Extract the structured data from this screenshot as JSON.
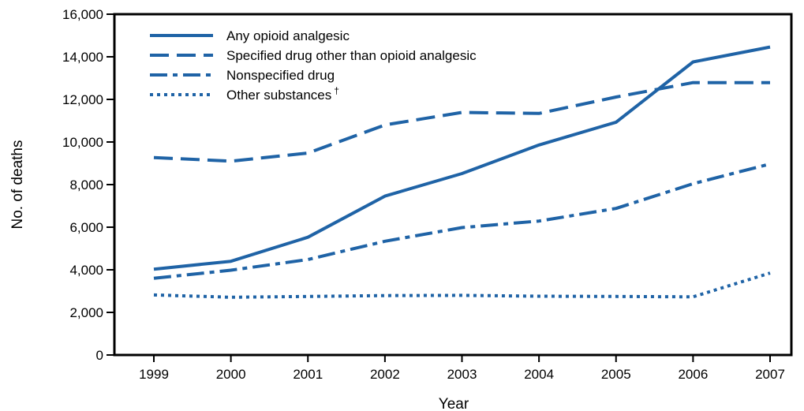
{
  "chart_data": {
    "type": "line",
    "title": "",
    "xlabel": "Year",
    "ylabel": "No. of deaths",
    "x": [
      "1999",
      "2000",
      "2001",
      "2002",
      "2003",
      "2004",
      "2005",
      "2006",
      "2007"
    ],
    "ylim": [
      0,
      16000
    ],
    "yticks": [
      "0",
      "2,000",
      "4,000",
      "6,000",
      "8,000",
      "10,000",
      "12,000",
      "14,000",
      "16,000"
    ],
    "ytick_values": [
      0,
      2000,
      4000,
      6000,
      8000,
      10000,
      12000,
      14000,
      16000
    ],
    "grid": false,
    "legend_position": "top-left",
    "series": [
      {
        "name": "Any opioid analgesic",
        "style": "solid",
        "values": [
          4030,
          4400,
          5530,
          7460,
          8520,
          9860,
          10930,
          13760,
          14460
        ]
      },
      {
        "name": "Specified drug other than opioid analgesic",
        "style": "dashed",
        "values": [
          9270,
          9100,
          9480,
          10800,
          11390,
          11340,
          12110,
          12790,
          12790
        ]
      },
      {
        "name": "Nonspecified drug",
        "style": "dashdot",
        "values": [
          3600,
          3980,
          4480,
          5340,
          5980,
          6290,
          6880,
          8040,
          8970
        ]
      },
      {
        "name": "Other substances",
        "name_suffix": "†",
        "style": "dotted",
        "values": [
          2820,
          2710,
          2750,
          2790,
          2800,
          2760,
          2750,
          2730,
          3850
        ]
      }
    ],
    "line_color": "#1f63a6"
  }
}
